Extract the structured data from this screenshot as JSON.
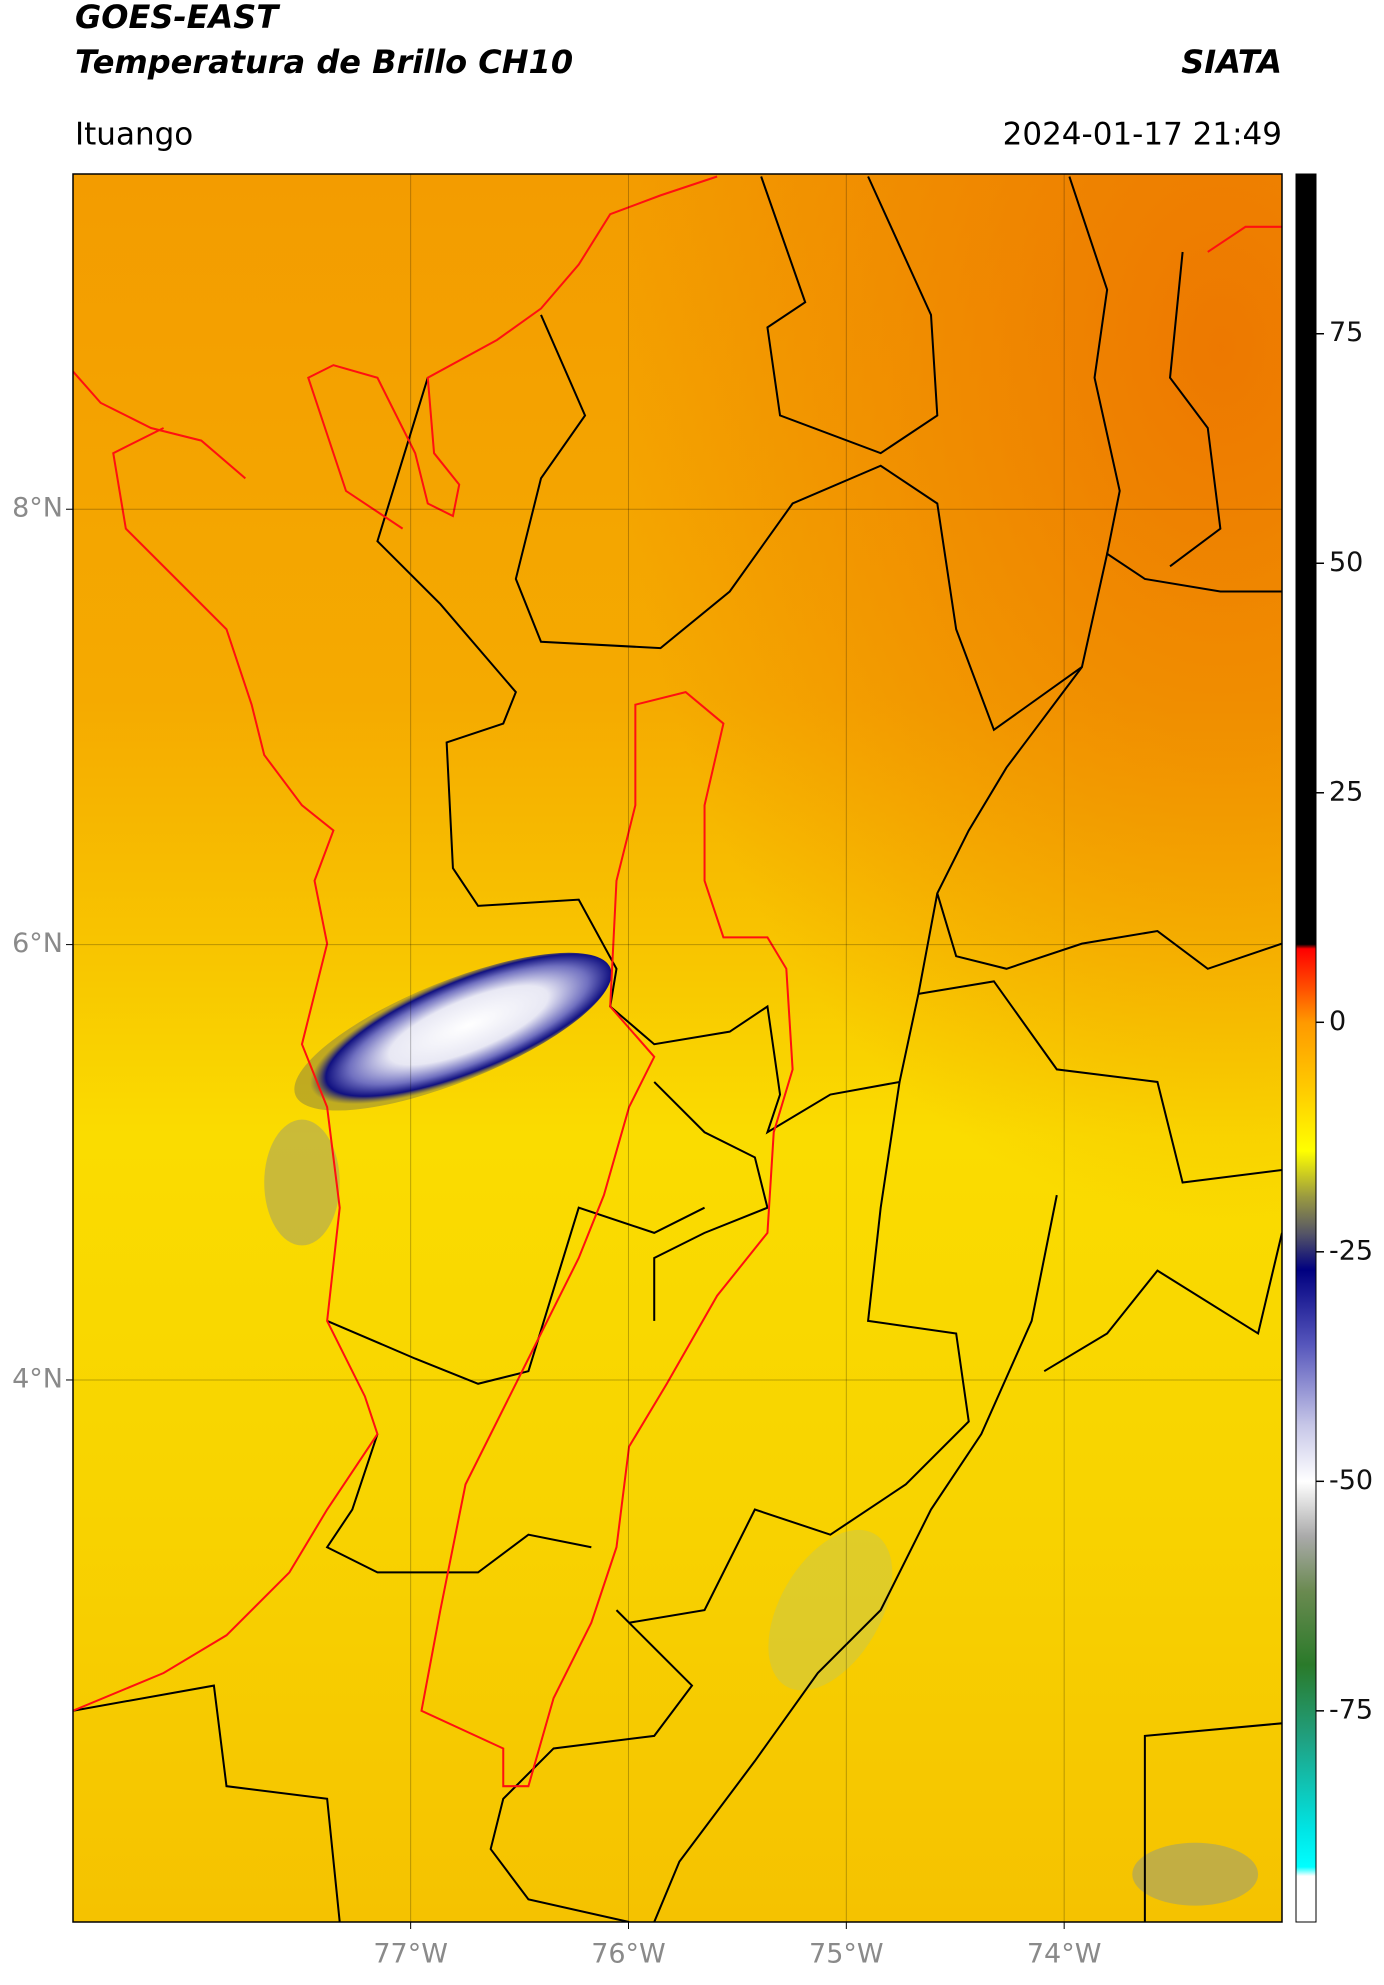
{
  "header": {
    "title": "GOES-EAST",
    "subtitle": "Temperatura de Brillo CH10",
    "brand": "SIATA",
    "location": "Ituango",
    "datetime": "2024-01-17 21:49"
  },
  "map": {
    "lon_lim": [
      -78.55,
      -73.0
    ],
    "lat_lim": [
      1.51,
      9.54
    ],
    "lat_ticks": [
      {
        "value": 8,
        "label": "8°N"
      },
      {
        "value": 6,
        "label": "6°N"
      },
      {
        "value": 4,
        "label": "4°N"
      }
    ],
    "lon_ticks": [
      {
        "value": -77,
        "label": "77°W"
      },
      {
        "value": -76,
        "label": "76°W"
      },
      {
        "value": -75,
        "label": "75°W"
      },
      {
        "value": -74,
        "label": "74°W"
      }
    ],
    "grid": true
  },
  "colorbar": {
    "lim": [
      -98,
      92.4
    ],
    "ticks": [
      75,
      50,
      25,
      0,
      -25,
      -50,
      -75
    ],
    "stops": [
      {
        "value": 92.4,
        "color": "#000000"
      },
      {
        "value": 8.5,
        "color": "#000000"
      },
      {
        "value": 8,
        "color": "#ff0000"
      },
      {
        "value": 4,
        "color": "#ff4a00"
      },
      {
        "value": 0,
        "color": "#ff9900"
      },
      {
        "value": -8,
        "color": "#ffd000"
      },
      {
        "value": -14,
        "color": "#ffff00"
      },
      {
        "value": -19,
        "color": "#9a9a40"
      },
      {
        "value": -23,
        "color": "#555566"
      },
      {
        "value": -27,
        "color": "#000080"
      },
      {
        "value": -35,
        "color": "#5555bb"
      },
      {
        "value": -44,
        "color": "#c8c8e8"
      },
      {
        "value": -50,
        "color": "#ffffff"
      },
      {
        "value": -56,
        "color": "#aaaaaa"
      },
      {
        "value": -62,
        "color": "#6a8a50"
      },
      {
        "value": -70,
        "color": "#2a7a2a"
      },
      {
        "value": -78,
        "color": "#20a080"
      },
      {
        "value": -88,
        "color": "#00e5e5"
      },
      {
        "value": -92,
        "color": "#00ffff"
      },
      {
        "value": -93,
        "color": "#ffffff"
      },
      {
        "value": -98,
        "color": "#ffffff"
      }
    ]
  }
}
